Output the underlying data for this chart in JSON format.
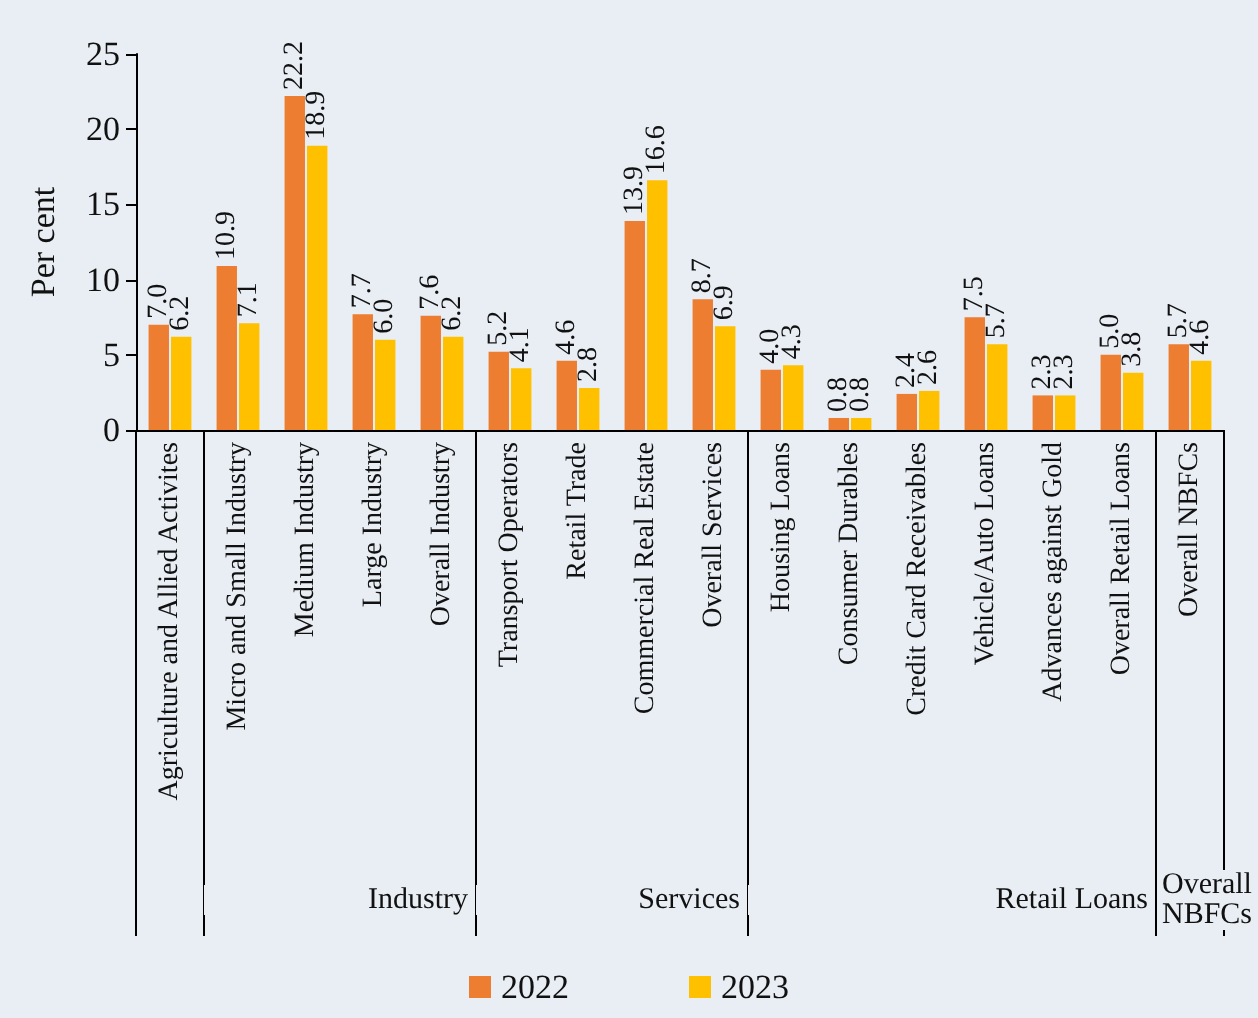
{
  "chart_data": {
    "type": "bar",
    "ylabel": "Per cent",
    "categories": [
      "Agriculture and Allied Activites",
      "Micro and Small Industry",
      "Medium Industry",
      "Large Industry",
      "Overall Industry",
      "Transport Operators",
      "Retail Trade",
      "Commercial Real Estate",
      "Overall Services",
      "Housing Loans",
      "Consumer Durables",
      "Credit Card Receivables",
      "Vehicle/Auto Loans",
      "Advances against Gold",
      "Overall Retail Loans",
      "Overall NBFCs"
    ],
    "series": [
      {
        "name": "2022",
        "color": "#ed7d31",
        "values": [
          7.0,
          10.9,
          22.2,
          7.7,
          7.6,
          5.2,
          4.6,
          13.9,
          8.7,
          4.0,
          0.8,
          2.4,
          7.5,
          2.3,
          5.0,
          5.7
        ],
        "value_labels": [
          "7.0",
          "10.9",
          "22.2",
          "7.7",
          "7.6",
          "5.2",
          "4.6",
          "13.9",
          "8.7",
          "4.0",
          "0.8",
          "2.4",
          "7.5",
          "2.3",
          "5.0",
          "5.7"
        ]
      },
      {
        "name": "2023",
        "color": "#ffc000",
        "values": [
          6.2,
          7.1,
          18.9,
          6.0,
          6.2,
          4.1,
          2.8,
          16.6,
          6.9,
          4.3,
          0.8,
          2.6,
          5.7,
          2.3,
          3.8,
          4.6
        ],
        "value_labels": [
          "6.2",
          "7.1",
          "18.9",
          "6.0",
          "6.2",
          "4.1",
          "2.8",
          "16.6",
          "6.9",
          "4.3",
          "0.8",
          "2.6",
          "5.7",
          "2.3",
          "3.8",
          "4.6"
        ]
      }
    ],
    "ylim": [
      0,
      25
    ],
    "yticks": [
      0,
      5,
      10,
      15,
      20,
      25
    ],
    "grid": false,
    "legend": "bottom",
    "annotations": [
      "Industry",
      "Services",
      "Retail Loans",
      "Overall NBFCs"
    ]
  }
}
